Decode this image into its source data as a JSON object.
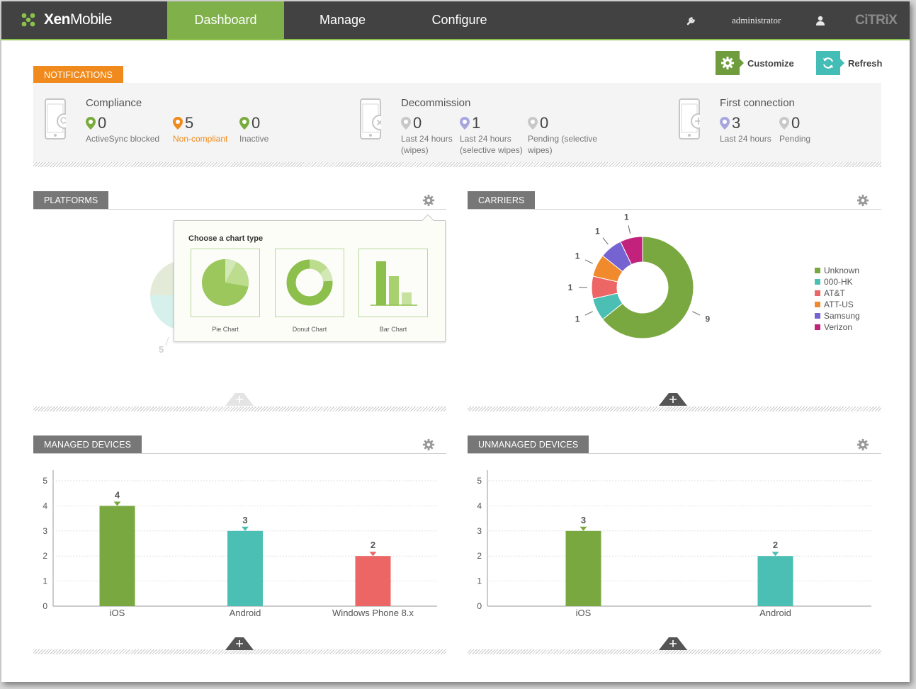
{
  "app": {
    "name_bold": "Xen",
    "name_light": "Mobile"
  },
  "nav": {
    "tabs": [
      {
        "label": "Dashboard",
        "active": true
      },
      {
        "label": "Manage",
        "active": false
      },
      {
        "label": "Configure",
        "active": false
      }
    ],
    "user": "administrator",
    "brand": "CiTRiX"
  },
  "actions": {
    "customize": "Customize",
    "refresh": "Refresh"
  },
  "notifications": {
    "header": "NOTIFICATIONS",
    "groups": [
      {
        "title": "Compliance",
        "items": [
          {
            "count": "0",
            "label": "ActiveSync blocked",
            "color": "#7aab3f"
          },
          {
            "count": "5",
            "label": "Non-compliant",
            "color": "#f08a1c",
            "highlight": true
          },
          {
            "count": "0",
            "label": "Inactive",
            "color": "#7aab3f"
          }
        ]
      },
      {
        "title": "Decommission",
        "items": [
          {
            "count": "0",
            "label_line1": "Last 24 hours",
            "label_line2": "(wipes)",
            "color": "#c8c8c8"
          },
          {
            "count": "1",
            "label_line1": "Last 24 hours",
            "label_line2": "(selective wipes)",
            "color": "#a7a7de"
          },
          {
            "count": "0",
            "label_line1": "Pending (selective",
            "label_line2": "wipes)",
            "color": "#c8c8c8"
          }
        ]
      },
      {
        "title": "First connection",
        "items": [
          {
            "count": "3",
            "label": "Last 24 hours",
            "color": "#a7a7de"
          },
          {
            "count": "0",
            "label": "Pending",
            "color": "#c8c8c8"
          }
        ]
      }
    ]
  },
  "platforms": {
    "header": "PLATFORMS",
    "hidden_label": "5",
    "chart_picker": {
      "title": "Choose a chart type",
      "options": [
        "Pie Chart",
        "Donut Chart",
        "Bar Chart"
      ]
    }
  },
  "carriers": {
    "header": "CARRIERS",
    "legend": [
      {
        "name": "Unknown",
        "color": "#7aa840"
      },
      {
        "name": "000-HK",
        "color": "#4bbfb3"
      },
      {
        "name": "AT&T",
        "color": "#eb6665"
      },
      {
        "name": "ATT-US",
        "color": "#f08a2c"
      },
      {
        "name": "Samsung",
        "color": "#7463d1"
      },
      {
        "name": "Verizon",
        "color": "#c2227c"
      }
    ]
  },
  "managed": {
    "header": "MANAGED DEVICES"
  },
  "unmanaged": {
    "header": "UNMANAGED DEVICES"
  },
  "chart_data": [
    {
      "type": "pie",
      "title": "",
      "subtype": "donut",
      "categories": [
        "Unknown",
        "000-HK",
        "AT&T",
        "ATT-US",
        "Samsung",
        "Verizon"
      ],
      "values": [
        9,
        1,
        1,
        1,
        1,
        1
      ],
      "colors": [
        "#7aa840",
        "#4bbfb3",
        "#eb6665",
        "#f08a2c",
        "#7463d1",
        "#c2227c"
      ],
      "legend": "right"
    },
    {
      "type": "bar",
      "title": "",
      "categories": [
        "iOS",
        "Android",
        "Windows Phone 8.x"
      ],
      "values": [
        4,
        3,
        2
      ],
      "colors": [
        "#7aa840",
        "#4bbfb3",
        "#eb6665"
      ],
      "ylim": [
        0,
        5
      ],
      "yticks": [
        0,
        1,
        2,
        3,
        4,
        5
      ],
      "grid": true
    },
    {
      "type": "bar",
      "title": "",
      "categories": [
        "iOS",
        "Android"
      ],
      "values": [
        3,
        2
      ],
      "colors": [
        "#7aa840",
        "#4bbfb3"
      ],
      "ylim": [
        0,
        5
      ],
      "yticks": [
        0,
        1,
        2,
        3,
        4,
        5
      ],
      "grid": true
    }
  ]
}
